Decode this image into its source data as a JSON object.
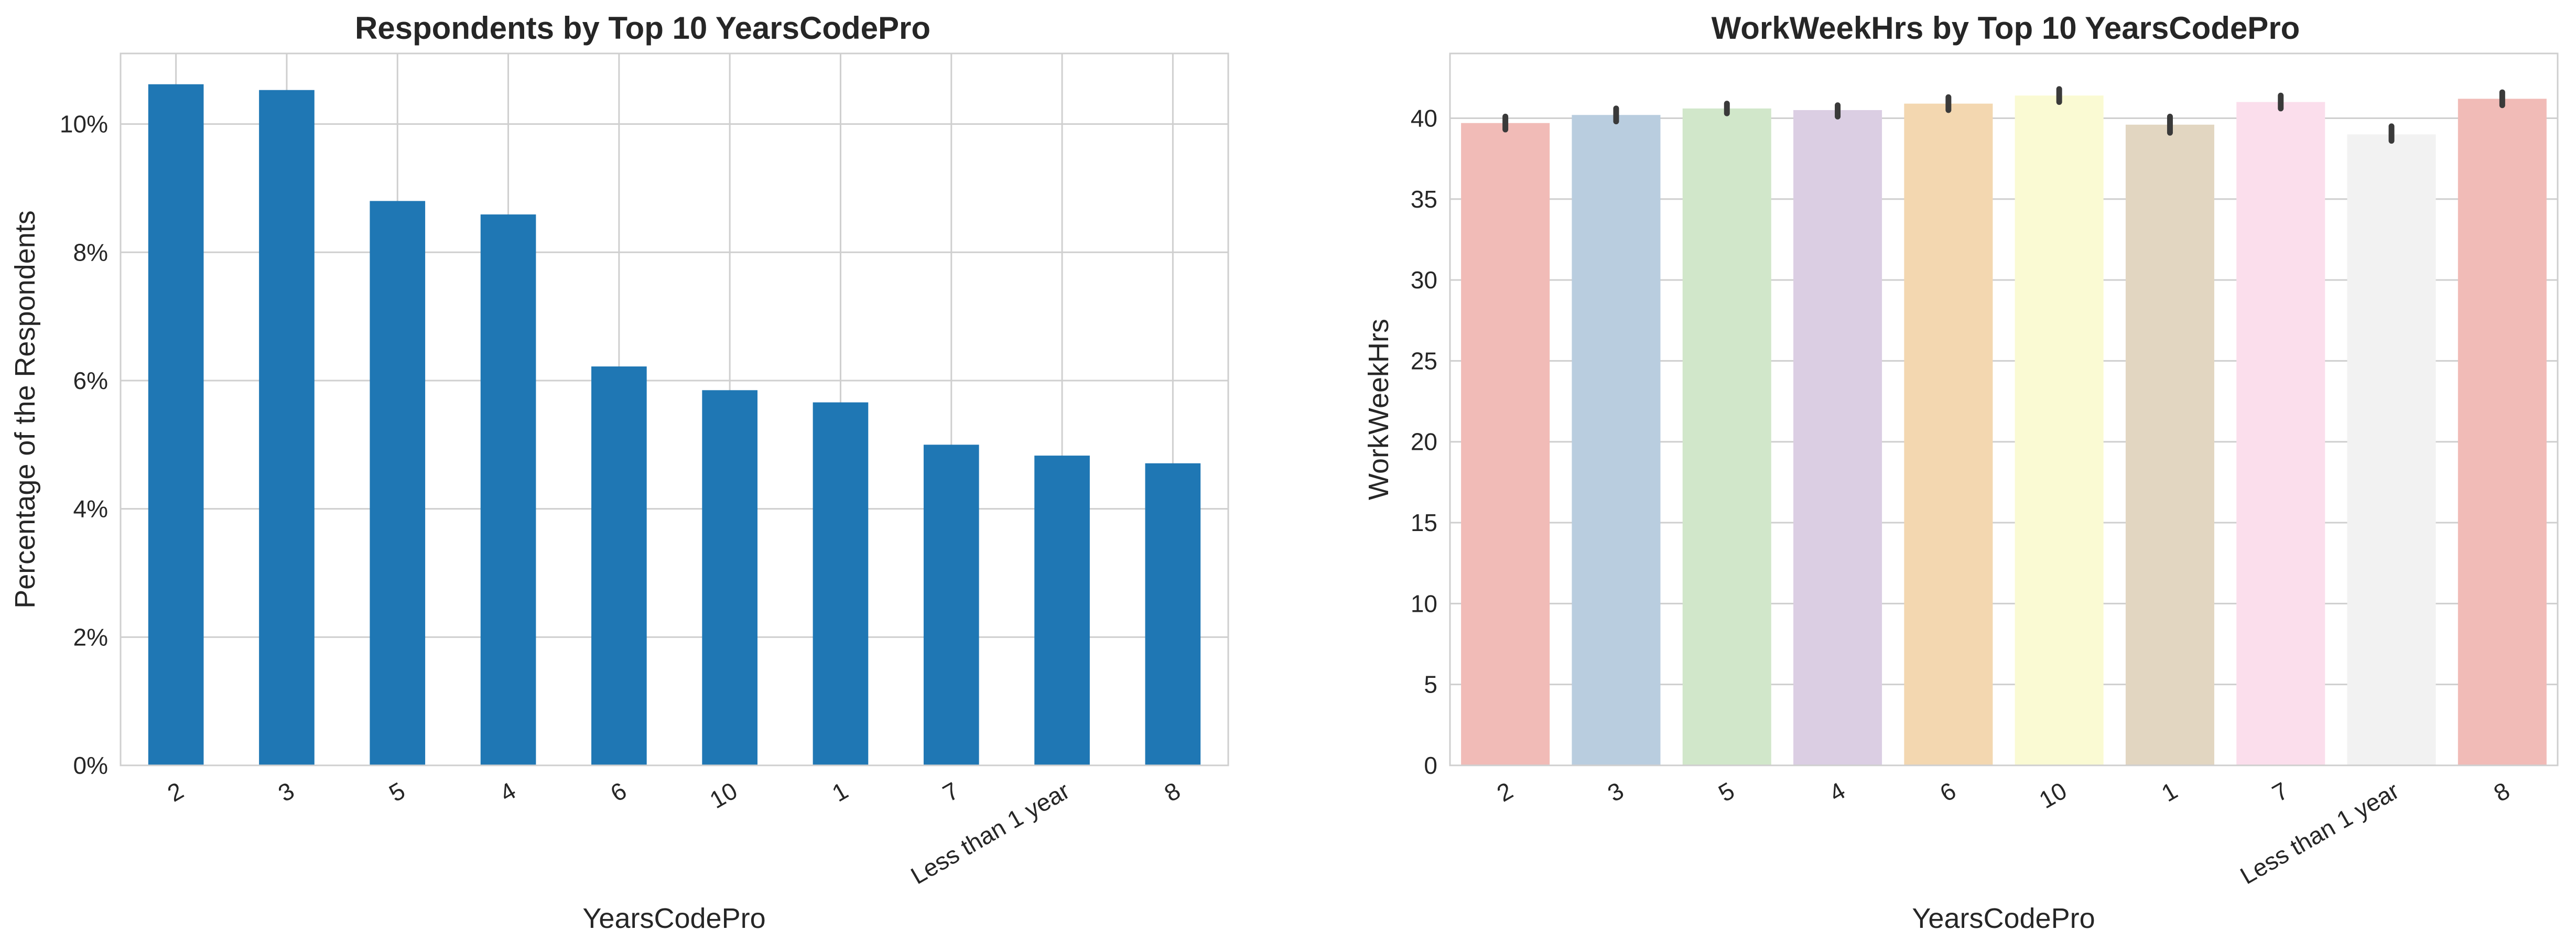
{
  "chart_data": [
    {
      "type": "bar",
      "title": "Respondents by Top 10 YearsCodePro",
      "xlabel": "YearsCodePro",
      "ylabel": "Percentage of the Respondents",
      "categories": [
        "2",
        "3",
        "5",
        "4",
        "6",
        "10",
        "1",
        "7",
        "Less than 1 year",
        "8"
      ],
      "values": [
        10.62,
        10.53,
        8.8,
        8.59,
        6.22,
        5.85,
        5.66,
        5.0,
        4.83,
        4.71
      ],
      "ylim": [
        0,
        11.1
      ],
      "yticks": [
        0,
        2,
        4,
        6,
        8,
        10
      ],
      "ytick_labels": [
        "0%",
        "2%",
        "4%",
        "6%",
        "8%",
        "10%"
      ],
      "bar_color": "#1f77b4",
      "grid": true
    },
    {
      "type": "bar",
      "title": "WorkWeekHrs by Top 10 YearsCodePro",
      "xlabel": "YearsCodePro",
      "ylabel": "WorkWeekHrs",
      "categories": [
        "2",
        "3",
        "5",
        "4",
        "6",
        "10",
        "1",
        "7",
        "Less than 1 year",
        "8"
      ],
      "values": [
        39.7,
        40.2,
        40.6,
        40.5,
        40.9,
        41.4,
        39.6,
        41.0,
        39.0,
        41.2
      ],
      "error_low": [
        39.3,
        39.8,
        40.3,
        40.1,
        40.5,
        41.0,
        39.1,
        40.6,
        38.6,
        40.8
      ],
      "error_high": [
        40.1,
        40.6,
        40.9,
        40.8,
        41.3,
        41.8,
        40.1,
        41.4,
        39.5,
        41.6
      ],
      "ylim": [
        0,
        44
      ],
      "yticks": [
        0,
        5,
        10,
        15,
        20,
        25,
        30,
        35,
        40
      ],
      "ytick_labels": [
        "0",
        "5",
        "10",
        "15",
        "20",
        "25",
        "30",
        "35",
        "40"
      ],
      "bar_colors": [
        "#f1bbb7",
        "#b9cddf",
        "#d1e7ca",
        "#dbcee3",
        "#f3d7b0",
        "#fafad3",
        "#e2d6c1",
        "#fbdeec",
        "#f2f2f2",
        "#f1bbb7"
      ],
      "grid": true
    }
  ]
}
